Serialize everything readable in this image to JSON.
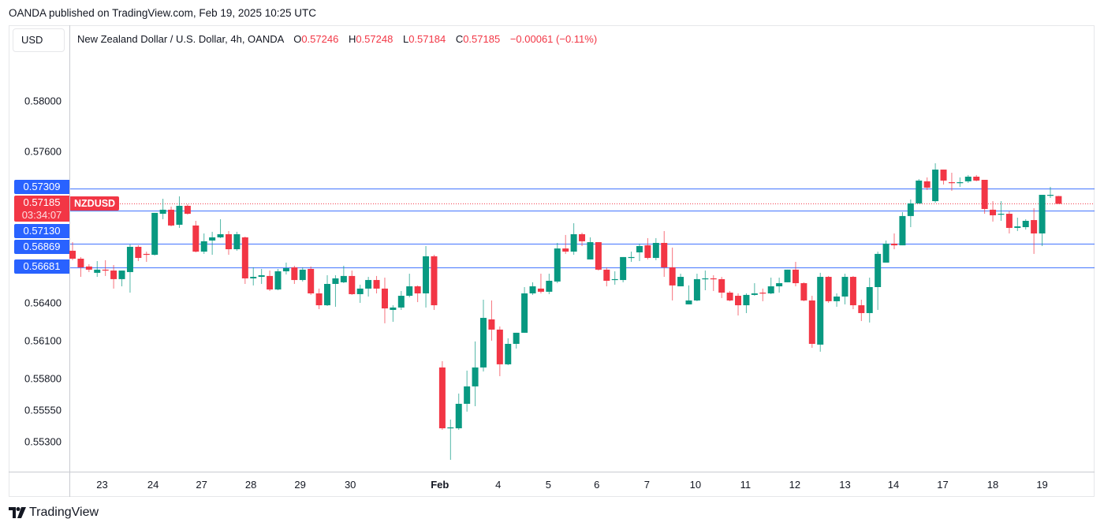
{
  "header": {
    "published": "OANDA published on TradingView.com, Feb 19, 2025 10:25 UTC"
  },
  "currency_button": "USD",
  "legend": {
    "title": "New Zealand Dollar / U.S. Dollar, 4h, OANDA",
    "o_label": "O",
    "o": "0.57246",
    "h_label": "H",
    "h": "0.57248",
    "l_label": "L",
    "l": "0.57184",
    "c_label": "C",
    "c": "0.57185",
    "change": "−0.00061 (−0.11%)"
  },
  "price_tag": {
    "price": "0.57185",
    "countdown": "03:34:07",
    "symbol": "NZDUSD"
  },
  "levels": [
    {
      "label": "0.57309",
      "value": 0.57309
    },
    {
      "label": "0.57130",
      "value": 0.5713
    },
    {
      "label": "0.56869",
      "value": 0.56869
    },
    {
      "label": "0.56681",
      "value": 0.56681
    }
  ],
  "footer": {
    "brand": "TradingView"
  },
  "colors": {
    "up": "#089981",
    "down": "#f23645",
    "level": "#2962ff"
  },
  "chart_data": {
    "type": "candlestick",
    "title": "New Zealand Dollar / U.S. Dollar, 4h, OANDA",
    "ylim": [
      0.551,
      0.5856
    ],
    "yticks": [
      "0.58000",
      "0.57600",
      "0.56400",
      "0.56100",
      "0.55800",
      "0.55550",
      "0.55300"
    ],
    "xticks": [
      {
        "label": "23",
        "candle": 3.6
      },
      {
        "label": "24",
        "candle": 9.8
      },
      {
        "label": "27",
        "candle": 15.7
      },
      {
        "label": "28",
        "candle": 21.7
      },
      {
        "label": "29",
        "candle": 27.7
      },
      {
        "label": "30",
        "candle": 33.8
      },
      {
        "label": "Feb",
        "candle": 44.7,
        "bold": true
      },
      {
        "label": "4",
        "candle": 51.8
      },
      {
        "label": "5",
        "candle": 57.9
      },
      {
        "label": "6",
        "candle": 63.8
      },
      {
        "label": "7",
        "candle": 69.9
      },
      {
        "label": "10",
        "candle": 75.8
      },
      {
        "label": "11",
        "candle": 81.9
      },
      {
        "label": "12",
        "candle": 87.9
      },
      {
        "label": "13",
        "candle": 94.0
      },
      {
        "label": "14",
        "candle": 99.9
      },
      {
        "label": "17",
        "candle": 105.9
      },
      {
        "label": "18",
        "candle": 112.0
      },
      {
        "label": "19",
        "candle": 118.0
      }
    ],
    "ohlc": [
      [
        0.56813,
        0.56881,
        0.56738,
        0.5675
      ],
      [
        0.5675,
        0.56763,
        0.56606,
        0.56681
      ],
      [
        0.56688,
        0.56706,
        0.56644,
        0.56663
      ],
      [
        0.56638,
        0.56731,
        0.56606,
        0.56663
      ],
      [
        0.56663,
        0.56738,
        0.56613,
        0.56656
      ],
      [
        0.56656,
        0.567,
        0.56513,
        0.56588
      ],
      [
        0.56588,
        0.56656,
        0.56531,
        0.56656
      ],
      [
        0.56644,
        0.56863,
        0.56481,
        0.56844
      ],
      [
        0.56844,
        0.56856,
        0.56731,
        0.56756
      ],
      [
        0.56788,
        0.56806,
        0.56725,
        0.56781
      ],
      [
        0.56781,
        0.57113,
        0.56775,
        0.57113
      ],
      [
        0.57106,
        0.57225,
        0.57063,
        0.57138
      ],
      [
        0.57138,
        0.57163,
        0.57006,
        0.57013
      ],
      [
        0.57019,
        0.57244,
        0.56994,
        0.57169
      ],
      [
        0.57169,
        0.57181,
        0.571,
        0.57106
      ],
      [
        0.57013,
        0.5705,
        0.568,
        0.56806
      ],
      [
        0.56806,
        0.5695,
        0.56788,
        0.56888
      ],
      [
        0.56894,
        0.56963,
        0.56781,
        0.56919
      ],
      [
        0.56919,
        0.57063,
        0.56913,
        0.56944
      ],
      [
        0.56944,
        0.56969,
        0.56781,
        0.56825
      ],
      [
        0.56825,
        0.56963,
        0.56813,
        0.56944
      ],
      [
        0.56919,
        0.56925,
        0.5655,
        0.56594
      ],
      [
        0.56594,
        0.56681,
        0.56538,
        0.56606
      ],
      [
        0.56606,
        0.56669,
        0.5655,
        0.56619
      ],
      [
        0.56613,
        0.56656,
        0.56494,
        0.56506
      ],
      [
        0.56506,
        0.56669,
        0.565,
        0.5665
      ],
      [
        0.5665,
        0.56719,
        0.56625,
        0.56675
      ],
      [
        0.56681,
        0.56694,
        0.5655,
        0.56581
      ],
      [
        0.56581,
        0.56681,
        0.56569,
        0.56663
      ],
      [
        0.56669,
        0.56688,
        0.56463,
        0.56475
      ],
      [
        0.56475,
        0.56513,
        0.5635,
        0.56381
      ],
      [
        0.56381,
        0.56619,
        0.56375,
        0.5655
      ],
      [
        0.5655,
        0.56619,
        0.56369,
        0.56594
      ],
      [
        0.56563,
        0.56694,
        0.56556,
        0.56613
      ],
      [
        0.56613,
        0.56656,
        0.56463,
        0.56469
      ],
      [
        0.56469,
        0.56544,
        0.564,
        0.56513
      ],
      [
        0.56513,
        0.56606,
        0.5645,
        0.56581
      ],
      [
        0.56581,
        0.56613,
        0.56475,
        0.56513
      ],
      [
        0.56513,
        0.566,
        0.56238,
        0.56356
      ],
      [
        0.56344,
        0.56381,
        0.5625,
        0.56363
      ],
      [
        0.56363,
        0.56494,
        0.56344,
        0.56456
      ],
      [
        0.56456,
        0.56631,
        0.56444,
        0.56531
      ],
      [
        0.56531,
        0.56538,
        0.56406,
        0.56475
      ],
      [
        0.56475,
        0.5685,
        0.56363,
        0.56769
      ],
      [
        0.56769,
        0.56781,
        0.56344,
        0.56381
      ],
      [
        0.55888,
        0.55938,
        0.55394,
        0.55406
      ],
      [
        0.55406,
        0.55475,
        0.55156,
        0.55413
      ],
      [
        0.55406,
        0.55681,
        0.55394,
        0.556
      ],
      [
        0.556,
        0.55863,
        0.55538,
        0.55738
      ],
      [
        0.55738,
        0.56094,
        0.55581,
        0.55888
      ],
      [
        0.55888,
        0.56425,
        0.55856,
        0.56281
      ],
      [
        0.56269,
        0.56419,
        0.561,
        0.56188
      ],
      [
        0.56188,
        0.56213,
        0.55819,
        0.55913
      ],
      [
        0.55913,
        0.56119,
        0.55906,
        0.56075
      ],
      [
        0.56075,
        0.56163,
        0.56038,
        0.56163
      ],
      [
        0.56163,
        0.56525,
        0.56163,
        0.56475
      ],
      [
        0.56475,
        0.56563,
        0.56463,
        0.56531
      ],
      [
        0.56513,
        0.56631,
        0.56475,
        0.56488
      ],
      [
        0.56488,
        0.56631,
        0.56469,
        0.56575
      ],
      [
        0.56569,
        0.56875,
        0.56556,
        0.56831
      ],
      [
        0.56831,
        0.56938,
        0.56788,
        0.56806
      ],
      [
        0.56806,
        0.57031,
        0.56781,
        0.56944
      ],
      [
        0.56944,
        0.56956,
        0.5685,
        0.56888
      ],
      [
        0.56744,
        0.56919,
        0.56744,
        0.56881
      ],
      [
        0.56881,
        0.56881,
        0.56656,
        0.56663
      ],
      [
        0.56663,
        0.56681,
        0.56531,
        0.56575
      ],
      [
        0.56581,
        0.5665,
        0.56544,
        0.56588
      ],
      [
        0.56581,
        0.56763,
        0.56563,
        0.56763
      ],
      [
        0.56756,
        0.56806,
        0.56725,
        0.56763
      ],
      [
        0.568,
        0.56869,
        0.56731,
        0.5685
      ],
      [
        0.56856,
        0.56913,
        0.56744,
        0.56756
      ],
      [
        0.56756,
        0.56913,
        0.56738,
        0.56875
      ],
      [
        0.56875,
        0.56969,
        0.56606,
        0.56681
      ],
      [
        0.56681,
        0.56838,
        0.56419,
        0.56538
      ],
      [
        0.56531,
        0.56631,
        0.56531,
        0.56606
      ],
      [
        0.56388,
        0.56538,
        0.56388,
        0.56419
      ],
      [
        0.56419,
        0.56631,
        0.56413,
        0.56588
      ],
      [
        0.56588,
        0.56656,
        0.565,
        0.56594
      ],
      [
        0.56594,
        0.56619,
        0.56494,
        0.56588
      ],
      [
        0.56588,
        0.56606,
        0.56438,
        0.56481
      ],
      [
        0.56481,
        0.56494,
        0.56413,
        0.56419
      ],
      [
        0.56456,
        0.56475,
        0.563,
        0.56381
      ],
      [
        0.56381,
        0.56475,
        0.56319,
        0.56463
      ],
      [
        0.56463,
        0.56556,
        0.56456,
        0.56475
      ],
      [
        0.56481,
        0.56513,
        0.56413,
        0.56475
      ],
      [
        0.56475,
        0.566,
        0.56469,
        0.56531
      ],
      [
        0.56531,
        0.566,
        0.56481,
        0.56556
      ],
      [
        0.56563,
        0.56663,
        0.56563,
        0.56663
      ],
      [
        0.56663,
        0.56725,
        0.56531,
        0.56556
      ],
      [
        0.56556,
        0.56563,
        0.56413,
        0.56419
      ],
      [
        0.56419,
        0.56456,
        0.56044,
        0.56075
      ],
      [
        0.56069,
        0.56638,
        0.56013,
        0.56606
      ],
      [
        0.56606,
        0.56613,
        0.564,
        0.56413
      ],
      [
        0.56413,
        0.56475,
        0.56369,
        0.5645
      ],
      [
        0.5645,
        0.56631,
        0.56388,
        0.56606
      ],
      [
        0.56606,
        0.56613,
        0.5635,
        0.56381
      ],
      [
        0.56381,
        0.56425,
        0.56256,
        0.56319
      ],
      [
        0.56319,
        0.566,
        0.56244,
        0.56525
      ],
      [
        0.56525,
        0.56806,
        0.56344,
        0.56788
      ],
      [
        0.56719,
        0.56894,
        0.56719,
        0.56869
      ],
      [
        0.56869,
        0.5695,
        0.56825,
        0.56856
      ],
      [
        0.56856,
        0.57119,
        0.56856,
        0.57088
      ],
      [
        0.57088,
        0.57219,
        0.57,
        0.57188
      ],
      [
        0.57188,
        0.57381,
        0.57188,
        0.57369
      ],
      [
        0.57363,
        0.57394,
        0.57294,
        0.57313
      ],
      [
        0.57206,
        0.57506,
        0.57194,
        0.57456
      ],
      [
        0.57456,
        0.57456,
        0.57338,
        0.57369
      ],
      [
        0.57356,
        0.57431,
        0.57288,
        0.5735
      ],
      [
        0.5735,
        0.57394,
        0.57319,
        0.57356
      ],
      [
        0.57363,
        0.57413,
        0.5735,
        0.574
      ],
      [
        0.574,
        0.57413,
        0.57363,
        0.57369
      ],
      [
        0.57375,
        0.57375,
        0.57106,
        0.57144
      ],
      [
        0.57138,
        0.57206,
        0.57044,
        0.57094
      ],
      [
        0.571,
        0.57206,
        0.5705,
        0.57106
      ],
      [
        0.57106,
        0.57125,
        0.5695,
        0.56994
      ],
      [
        0.56994,
        0.57075,
        0.56969,
        0.57006
      ],
      [
        0.57,
        0.57063,
        0.56981,
        0.5705
      ],
      [
        0.57056,
        0.5715,
        0.56788,
        0.5695
      ],
      [
        0.5695,
        0.57256,
        0.5685,
        0.57256
      ],
      [
        0.5725,
        0.57319,
        0.57231,
        0.57256
      ],
      [
        0.57246,
        0.57248,
        0.57184,
        0.57185
      ]
    ]
  }
}
